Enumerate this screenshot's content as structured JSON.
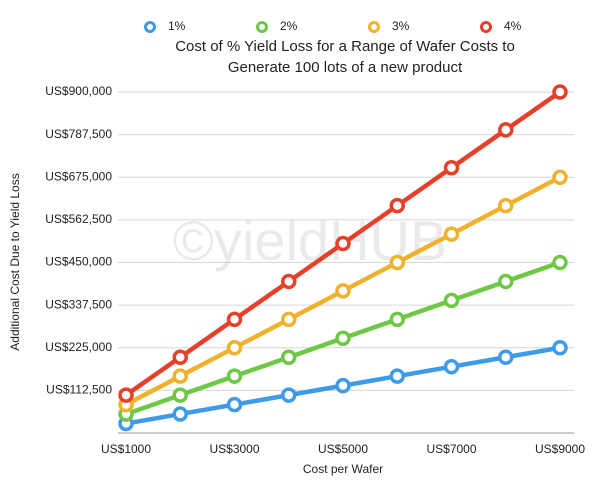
{
  "chart_data": {
    "type": "line",
    "title": [
      "Cost of % Yield Loss for a Range of Wafer Costs to",
      "Generate 100 lots of a new product"
    ],
    "watermark": "©yieldHUB",
    "x_label": "Cost per Wafer",
    "y_label": "Additional Cost Due to Yield Loss",
    "categories": [
      "US$1000",
      null,
      "US$3000",
      null,
      "US$5000",
      null,
      "US$7000",
      null,
      "US$9000"
    ],
    "series": [
      {
        "name": "1%",
        "color": "#3d9be9",
        "values": [
          25000,
          50000,
          75000,
          100000,
          125000,
          150000,
          175000,
          200000,
          225000
        ]
      },
      {
        "name": "2%",
        "color": "#6fc845",
        "values": [
          50000,
          100000,
          150000,
          200000,
          250000,
          300000,
          350000,
          400000,
          450000
        ]
      },
      {
        "name": "3%",
        "color": "#f0b22c",
        "values": [
          75000,
          150000,
          225000,
          300000,
          375000,
          450000,
          525000,
          600000,
          675000
        ]
      },
      {
        "name": "4%",
        "color": "#e6402a",
        "values": [
          100000,
          200000,
          300000,
          400000,
          500000,
          600000,
          700000,
          800000,
          900000
        ]
      }
    ],
    "ylim": [
      0,
      900000
    ],
    "yticks": [
      {
        "value": 112500,
        "label": "US$112,500"
      },
      {
        "value": 225000,
        "label": "US$225,000"
      },
      {
        "value": 337500,
        "label": "US$337,500"
      },
      {
        "value": 450000,
        "label": "US$450,000"
      },
      {
        "value": 562500,
        "label": "US$562,500"
      },
      {
        "value": 675000,
        "label": "US$675,000"
      },
      {
        "value": 787500,
        "label": "US$787,500"
      },
      {
        "value": 900000,
        "label": "US$900,000"
      }
    ],
    "grid": true,
    "legend": "top"
  }
}
